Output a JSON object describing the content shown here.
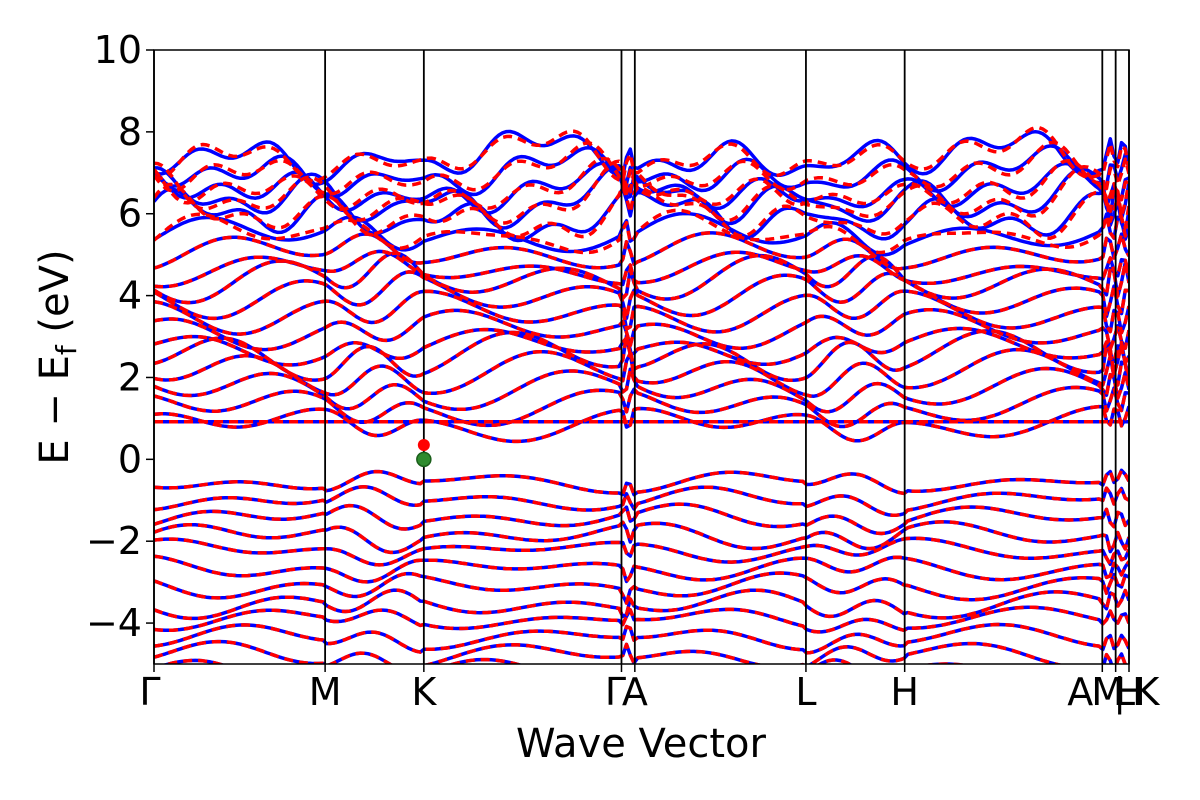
{
  "chart_data": {
    "type": "line",
    "xlabel": "Wave Vector",
    "ylabel": "E − E",
    "ylabel_sub": "f",
    "ylabel_unit": " (eV)",
    "ylim": [
      -5,
      10
    ],
    "y_ticks": [
      -4,
      -2,
      0,
      2,
      4,
      6,
      8,
      10
    ],
    "y_tick_labels": [
      "−4",
      "−2",
      "0",
      "2",
      "4",
      "6",
      "8",
      "10"
    ],
    "k_points": [
      {
        "label": "Γ",
        "x": 0.0
      },
      {
        "label": "M",
        "x": 1.0
      },
      {
        "label": "K",
        "x": 1.577
      },
      {
        "label": "Γ",
        "x": 2.732
      },
      {
        "label": "A",
        "x": 2.81
      },
      {
        "label": "L",
        "x": 3.81
      },
      {
        "label": "H",
        "x": 4.387
      },
      {
        "label": "A",
        "x": 5.542
      },
      {
        "label": "L",
        "x": 5.62
      },
      {
        "label": "M",
        "x": 5.62
      },
      {
        "label": "K",
        "x": 5.698
      },
      {
        "label": "H",
        "x": 5.698
      }
    ],
    "k_point_tick_labels": [
      "Γ",
      "M",
      "K",
      "Γ",
      "A",
      "L",
      "H",
      "A",
      "M",
      "|",
      "L",
      "K",
      "H"
    ],
    "xlim": [
      0,
      5.698
    ],
    "fermi_marker": {
      "x": 1.577,
      "y": 0.0,
      "color": "#2e8b2e"
    },
    "band_gap_edges": {
      "vbm": -0.35,
      "cbm": 0.35
    },
    "series": [
      {
        "color": "#0000ff",
        "style": "solid",
        "width": 3.5
      },
      {
        "color": "#ff0000",
        "style": "dashed",
        "width": 3.5
      }
    ],
    "flat_band_energy": 0.92
  }
}
